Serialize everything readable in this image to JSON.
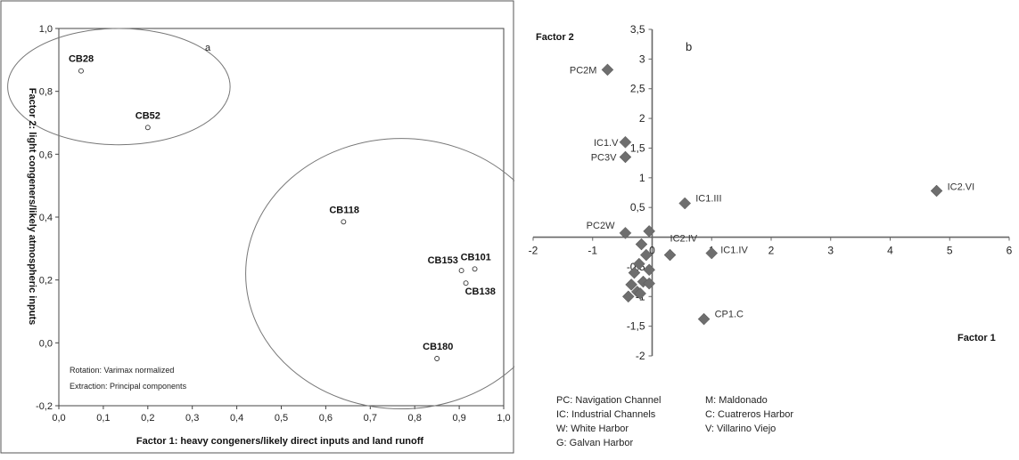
{
  "chart_data": [
    {
      "type": "scatter",
      "panel_label": "a",
      "xlabel": "Factor 1: heavy congeners/likely direct inputs and land runoff",
      "ylabel": "Factor 2: light congeners/likely atmospheric inputs",
      "xlim": [
        0.0,
        1.0
      ],
      "ylim": [
        -0.2,
        1.0
      ],
      "x_ticks": [
        "0,0",
        "0,1",
        "0,2",
        "0,3",
        "0,4",
        "0,5",
        "0,6",
        "0,7",
        "0,8",
        "0,9",
        "1,0"
      ],
      "y_ticks": [
        "-0,2",
        "0,0",
        "0,2",
        "0,4",
        "0,6",
        "0,8",
        "1,0"
      ],
      "grid": false,
      "points": [
        {
          "label": "CB28",
          "x": 0.05,
          "y": 0.865
        },
        {
          "label": "CB52",
          "x": 0.2,
          "y": 0.685
        },
        {
          "label": "CB118",
          "x": 0.64,
          "y": 0.385
        },
        {
          "label": "CB153",
          "x": 0.905,
          "y": 0.23
        },
        {
          "label": "CB101",
          "x": 0.935,
          "y": 0.235
        },
        {
          "label": "CB138",
          "x": 0.915,
          "y": 0.19
        },
        {
          "label": "CB180",
          "x": 0.85,
          "y": -0.05
        }
      ],
      "annotations": [
        "Rotation: Varimax normalized",
        "Extraction: Principal components"
      ]
    },
    {
      "type": "scatter",
      "panel_label": "b",
      "xlabel": "Factor 1",
      "ylabel": "Factor 2",
      "xlim": [
        -2,
        6
      ],
      "ylim": [
        -2,
        3.5
      ],
      "x_ticks": [
        "-2",
        "-1",
        "0",
        "1",
        "2",
        "3",
        "4",
        "5",
        "6"
      ],
      "y_ticks": [
        "3,5",
        "3",
        "2,5",
        "2",
        "1,5",
        "1",
        "0,5",
        "-0,5",
        "-1",
        "-1,5",
        "-2"
      ],
      "grid": false,
      "marker_color": "#6e6e6e",
      "labeled_points": [
        {
          "label": "PC2M",
          "x": -0.75,
          "y": 2.82
        },
        {
          "label": "IC1.V",
          "x": -0.45,
          "y": 1.6
        },
        {
          "label": "PC3V",
          "x": -0.45,
          "y": 1.35
        },
        {
          "label": "IC1.III",
          "x": 0.55,
          "y": 0.57
        },
        {
          "label": "IC2.VI",
          "x": 4.78,
          "y": 0.78
        },
        {
          "label": "PC2W",
          "x": -0.45,
          "y": 0.07
        },
        {
          "label": "IC2.IV",
          "x": 0.3,
          "y": -0.3
        },
        {
          "label": "IC1.IV",
          "x": 1.0,
          "y": -0.27
        },
        {
          "label": "CP1.C",
          "x": 0.87,
          "y": -1.38
        }
      ],
      "unlabeled_points": [
        {
          "x": -0.05,
          "y": 0.1
        },
        {
          "x": -0.18,
          "y": -0.12
        },
        {
          "x": -0.1,
          "y": -0.3
        },
        {
          "x": -0.22,
          "y": -0.45
        },
        {
          "x": -0.05,
          "y": -0.55
        },
        {
          "x": -0.3,
          "y": -0.6
        },
        {
          "x": -0.15,
          "y": -0.75
        },
        {
          "x": -0.35,
          "y": -0.8
        },
        {
          "x": -0.05,
          "y": -0.78
        },
        {
          "x": -0.25,
          "y": -0.92
        },
        {
          "x": -0.4,
          "y": -1.0
        },
        {
          "x": -0.2,
          "y": -0.95
        }
      ],
      "legend": [
        "PC: Navigation Channel",
        "IC: Industrial Channels",
        "W: White Harbor",
        "G: Galvan Harbor",
        "M: Maldonado",
        "C: Cuatreros Harbor",
        "V: Villarino Viejo"
      ]
    }
  ]
}
